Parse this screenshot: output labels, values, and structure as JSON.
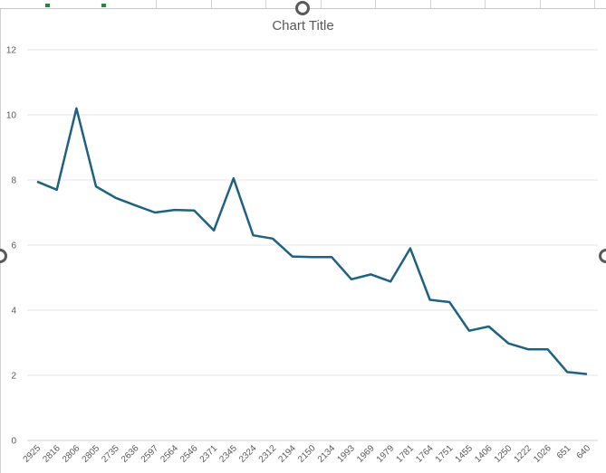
{
  "chart_data": {
    "type": "line",
    "title": "Chart Title",
    "xlabel": "",
    "ylabel": "",
    "ylim": [
      0,
      12
    ],
    "yticks": [
      0,
      2,
      4,
      6,
      8,
      10,
      12
    ],
    "grid": true,
    "legend": "none",
    "line_color": "#1f6180",
    "categories": [
      "2925",
      "2816",
      "2806",
      "2805",
      "2735",
      "2636",
      "2597",
      "2564",
      "2546",
      "2371",
      "2345",
      "2324",
      "2312",
      "2194",
      "2150",
      "2134",
      "1993",
      "1969",
      "1979",
      "1781",
      "1764",
      "1751",
      "1455",
      "1406",
      "1250",
      "1222",
      "1026",
      "651",
      "640"
    ],
    "series": [
      {
        "values": [
          7.95,
          7.7,
          10.2,
          7.8,
          7.45,
          7.22,
          7.0,
          7.08,
          7.06,
          6.45,
          8.05,
          6.3,
          6.2,
          5.65,
          5.63,
          5.63,
          4.95,
          5.1,
          4.88,
          5.9,
          4.32,
          4.25,
          3.37,
          3.5,
          2.98,
          2.8,
          2.8,
          2.1,
          2.04
        ]
      }
    ]
  }
}
